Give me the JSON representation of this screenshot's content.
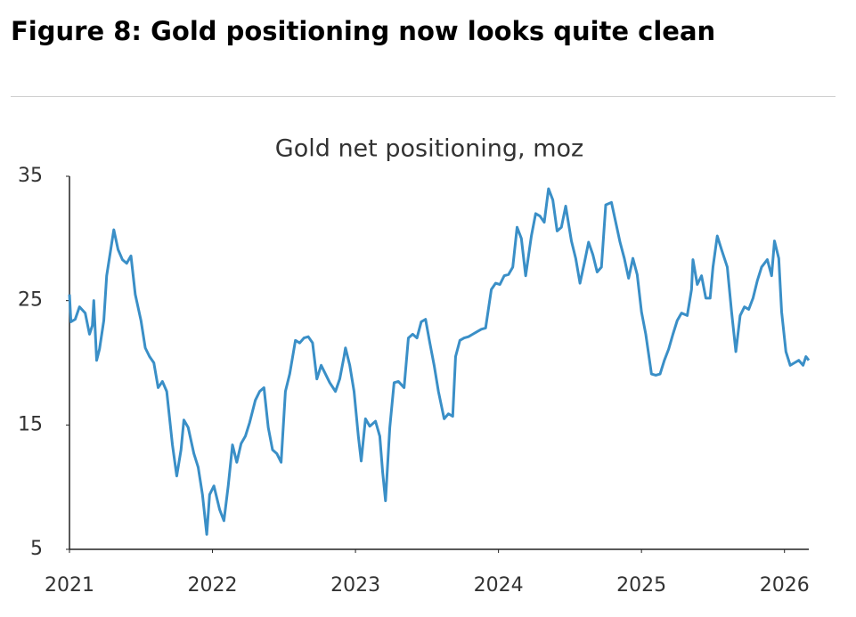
{
  "header": {
    "title": "Figure 8: Gold positioning now looks quite clean"
  },
  "chart_data": {
    "type": "line",
    "title": "Gold net positioning, moz",
    "color": "#3a8fc7",
    "x": [
      2021.0,
      2021.01,
      2021.04,
      2021.07,
      2021.11,
      2021.14,
      2021.16,
      2021.17,
      2021.19,
      2021.21,
      2021.24,
      2021.26,
      2021.31,
      2021.34,
      2021.37,
      2021.4,
      2021.43,
      2021.46,
      2021.5,
      2021.53,
      2021.56,
      2021.59,
      2021.62,
      2021.65,
      2021.68,
      2021.72,
      2021.75,
      2021.78,
      2021.8,
      2021.83,
      2021.87,
      2021.9,
      2021.93,
      2021.96,
      2021.98,
      2022.01,
      2022.05,
      2022.08,
      2022.11,
      2022.14,
      2022.17,
      2022.2,
      2022.23,
      2022.26,
      2022.3,
      2022.33,
      2022.36,
      2022.39,
      2022.42,
      2022.45,
      2022.48,
      2022.51,
      2022.54,
      2022.58,
      2022.61,
      2022.64,
      2022.67,
      2022.7,
      2022.73,
      2022.76,
      2022.79,
      2022.82,
      2022.86,
      2022.89,
      2022.92,
      2022.93,
      2022.96,
      2022.99,
      2023.02,
      2023.04,
      2023.07,
      2023.1,
      2023.14,
      2023.17,
      2023.19,
      2023.21,
      2023.24,
      2023.27,
      2023.3,
      2023.34,
      2023.37,
      2023.4,
      2023.43,
      2023.46,
      2023.49,
      2023.52,
      2023.55,
      2023.58,
      2023.62,
      2023.65,
      2023.68,
      2023.7,
      2023.73,
      2023.76,
      2023.79,
      2023.82,
      2023.85,
      2023.88,
      2023.91,
      2023.95,
      2023.98,
      2024.01,
      2024.04,
      2024.07,
      2024.1,
      2024.13,
      2024.16,
      2024.19,
      2024.23,
      2024.26,
      2024.29,
      2024.32,
      2024.35,
      2024.38,
      2024.41,
      2024.44,
      2024.47,
      2024.51,
      2024.54,
      2024.57,
      2024.6,
      2024.63,
      2024.66,
      2024.69,
      2024.72,
      2024.75,
      2024.79,
      2024.82,
      2024.85,
      2024.88,
      2024.91,
      2024.94,
      2024.97,
      2025.0,
      2025.03,
      2025.07,
      2025.1,
      2025.13,
      2025.16,
      2025.19,
      2025.22,
      2025.25,
      2025.28,
      2025.32,
      2025.35,
      2025.36,
      2025.39,
      2025.42,
      2025.45,
      2025.48,
      2025.5,
      2025.53,
      2025.56,
      2025.6,
      2025.63,
      2025.66,
      2025.69,
      2025.72,
      2025.75,
      2025.78,
      2025.81,
      2025.84,
      2025.88,
      2025.91,
      2025.93,
      2025.96,
      2025.98,
      2026.01,
      2026.04,
      2026.07,
      2026.1,
      2026.13,
      2026.15,
      2026.17
    ],
    "values": [
      25.5,
      23.3,
      23.5,
      24.5,
      24.0,
      22.3,
      23.0,
      25.0,
      20.2,
      21.1,
      23.4,
      27.0,
      30.7,
      29.1,
      28.3,
      28.0,
      28.6,
      25.5,
      23.4,
      21.2,
      20.5,
      20.0,
      18.0,
      18.5,
      17.7,
      13.4,
      10.9,
      13.0,
      15.4,
      14.8,
      12.7,
      11.6,
      9.4,
      6.2,
      9.4,
      10.1,
      8.2,
      7.3,
      10.1,
      13.4,
      12.0,
      13.5,
      14.1,
      15.2,
      17.0,
      17.7,
      18.0,
      14.8,
      13.0,
      12.7,
      12.0,
      17.7,
      19.1,
      21.8,
      21.6,
      22.0,
      22.1,
      21.6,
      18.7,
      19.8,
      19.1,
      18.4,
      17.7,
      18.7,
      20.5,
      21.2,
      19.8,
      17.7,
      14.1,
      12.1,
      15.5,
      14.9,
      15.3,
      14.1,
      11.2,
      8.9,
      14.8,
      18.4,
      18.5,
      18.0,
      22.0,
      22.3,
      22.0,
      23.3,
      23.5,
      21.6,
      19.8,
      17.7,
      15.5,
      15.9,
      15.7,
      20.5,
      21.8,
      22.0,
      22.1,
      22.3,
      22.5,
      22.7,
      22.8,
      25.9,
      26.4,
      26.3,
      27.0,
      27.1,
      27.7,
      30.9,
      30.0,
      27.0,
      30.2,
      32.0,
      31.8,
      31.3,
      34.0,
      33.1,
      30.6,
      30.9,
      32.6,
      29.8,
      28.4,
      26.4,
      28.0,
      29.7,
      28.7,
      27.3,
      27.7,
      32.7,
      32.9,
      31.3,
      29.7,
      28.4,
      26.8,
      28.4,
      27.1,
      24.1,
      22.3,
      19.1,
      19.0,
      19.1,
      20.2,
      21.1,
      22.3,
      23.4,
      24.0,
      23.8,
      25.9,
      28.3,
      26.3,
      27.0,
      25.2,
      25.2,
      27.7,
      30.2,
      29.1,
      27.7,
      24.1,
      20.9,
      23.8,
      24.5,
      24.3,
      25.2,
      26.6,
      27.7,
      28.3,
      27.0,
      29.8,
      28.4,
      24.1,
      20.9,
      19.8,
      20.0,
      20.2,
      19.8,
      20.5,
      20.2
    ],
    "xlim": [
      2021,
      2026.17
    ],
    "xticks": [
      2021,
      2022,
      2023,
      2024,
      2025,
      2026
    ],
    "ylim": [
      5,
      35
    ],
    "yticks": [
      5,
      15,
      25,
      35
    ],
    "grid": false
  }
}
